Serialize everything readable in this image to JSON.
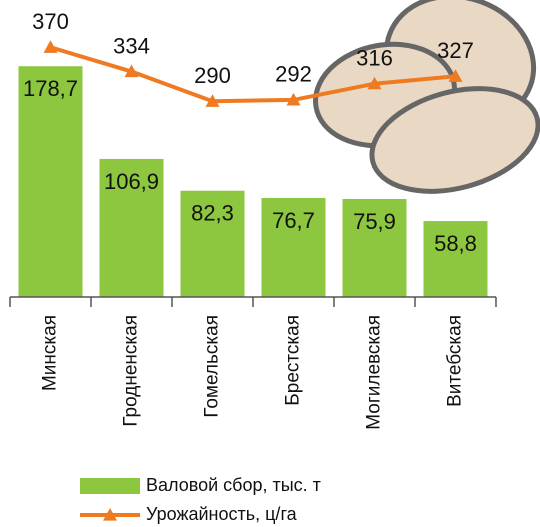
{
  "chart_data": {
    "type": "bar_line",
    "categories": [
      "Минская",
      "Гродненская",
      "Гомельская",
      "Брестская",
      "Могилевская",
      "Витебская"
    ],
    "series": [
      {
        "name": "Валовой сбор, тыс. т",
        "type": "bar",
        "color": "#8dc63f",
        "values": [
          178.7,
          106.9,
          82.3,
          76.7,
          75.9,
          58.8
        ],
        "value_labels": [
          "178,7",
          "106,9",
          "82,3",
          "76,7",
          "75,9",
          "58,8"
        ]
      },
      {
        "name": "Урожайность, ц/га",
        "type": "line",
        "axis": "y2",
        "color": "#f07a22",
        "values": [
          370,
          334,
          290,
          292,
          316,
          327
        ]
      }
    ],
    "ylim": [
      0,
      230
    ],
    "y2lim": [
      0,
      440
    ],
    "legend": "bottom"
  }
}
